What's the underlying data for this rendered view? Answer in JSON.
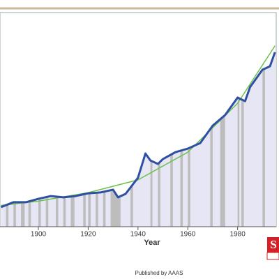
{
  "chart_data": {
    "type": "line",
    "xlabel": "Year",
    "xlim": [
      1884.6,
      1995.5
    ],
    "ylim": [
      0,
      100
    ],
    "xticks": [
      1900,
      1920,
      1940,
      1960,
      1980
    ],
    "series": [
      {
        "color": "#2f4fa2",
        "x": [
          1885,
          1890,
          1895,
          1900,
          1905,
          1910,
          1915,
          1920,
          1925,
          1930,
          1932,
          1935,
          1940,
          1943,
          1945,
          1948,
          1950,
          1955,
          1960,
          1965,
          1970,
          1975,
          1980,
          1983,
          1985,
          1990,
          1993,
          1995
        ],
        "values": [
          9.2,
          11.5,
          11.5,
          13.1,
          14.4,
          13.8,
          14.4,
          15.7,
          16.1,
          17.4,
          13.8,
          15.4,
          23,
          34.4,
          31.1,
          29.5,
          31.8,
          35,
          36.7,
          39.3,
          47.5,
          52.5,
          60.7,
          59,
          65.6,
          73.8,
          75.4,
          82
        ]
      },
      {
        "color": "#6cc24a",
        "x": [
          1885,
          1900,
          1920,
          1940,
          1960,
          1980,
          1995
        ],
        "values": [
          10,
          12,
          16,
          22,
          35,
          58,
          85
        ]
      }
    ],
    "shaded_periods": [
      [
        1887,
        1888
      ],
      [
        1890,
        1891
      ],
      [
        1893,
        1894.5
      ],
      [
        1896,
        1897
      ],
      [
        1900,
        1901
      ],
      [
        1903,
        1904
      ],
      [
        1907,
        1908
      ],
      [
        1910,
        1911
      ],
      [
        1913,
        1914.5
      ],
      [
        1918,
        1919
      ],
      [
        1920,
        1921
      ],
      [
        1923,
        1924
      ],
      [
        1926,
        1927
      ],
      [
        1929,
        1933
      ],
      [
        1937,
        1938
      ],
      [
        1945,
        1945.8
      ],
      [
        1948,
        1949
      ],
      [
        1953,
        1954
      ],
      [
        1957,
        1958
      ],
      [
        1960,
        1961
      ],
      [
        1969,
        1970
      ],
      [
        1973,
        1975
      ],
      [
        1980,
        1980.7
      ],
      [
        1981.5,
        1982.5
      ],
      [
        1990,
        1991
      ]
    ],
    "logo": "S",
    "footer": "Published by AAAS"
  }
}
